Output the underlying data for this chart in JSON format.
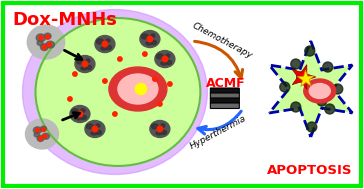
{
  "background_color": "#ffffff",
  "border_color": "#00ee00",
  "title_text": "Dox-MNHs",
  "title_color": "#ff0000",
  "apoptosis_text": "APOPTOSIS",
  "apoptosis_color": "#ff0000",
  "acmf_text": "ACMF",
  "acmf_color": "#ff0000",
  "chemotherapy_text": "Chemotherapy",
  "hyperthermia_text": "Hyperthermia",
  "cell_color": "#ccff99",
  "cell_glow_color": "#cc88ff",
  "nucleus_color": "#dd3333",
  "nucleus_inner_color": "#ffbbbb",
  "nucleus_dot_color": "#ffff00",
  "red_dot_color": "#ff2200",
  "star_red_color": "#ee0000",
  "star_yellow_color": "#ffee00",
  "arrow_chemo_color": "#cc5500",
  "arrow_hyper_color": "#2266ff",
  "dead_cell_color": "#ccff99",
  "dead_cell_border": "#0000aa",
  "dark_dot_color": "#223322",
  "np_gray": "#aaaaaa",
  "np_dark": "#333333"
}
